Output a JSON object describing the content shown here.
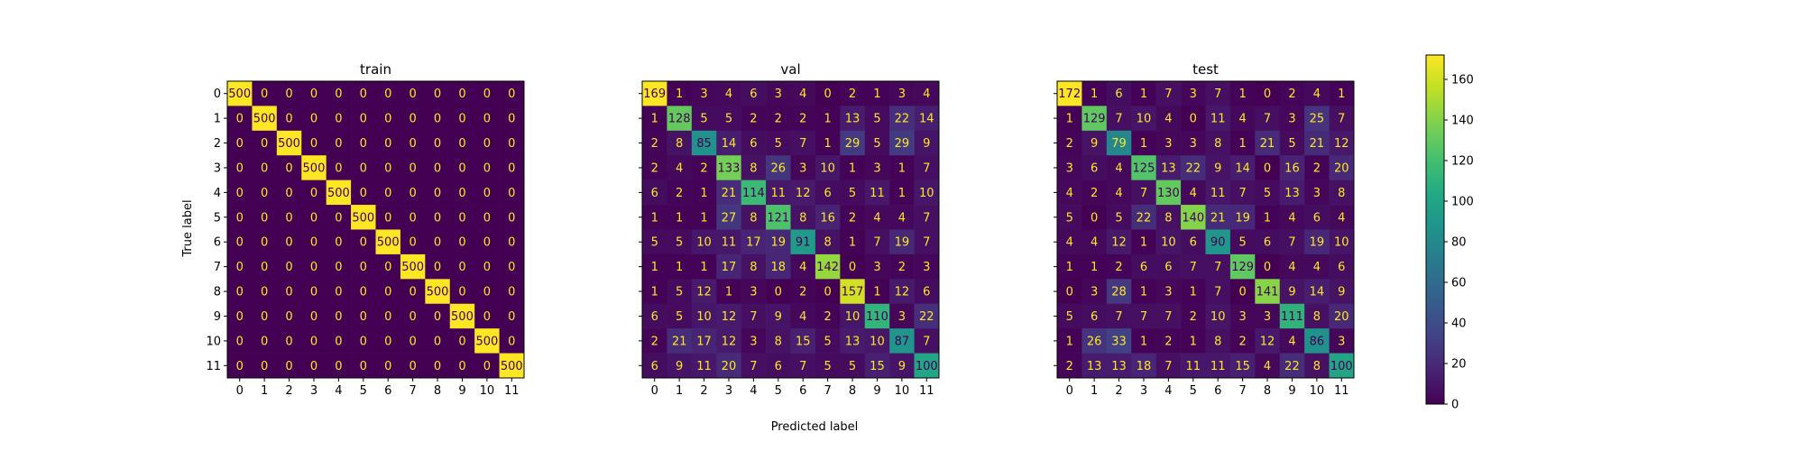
{
  "chart_data": {
    "type": "heatmap",
    "xlabel": "Predicted label",
    "ylabel": "True label",
    "labels": [
      "0",
      "1",
      "2",
      "3",
      "4",
      "5",
      "6",
      "7",
      "8",
      "9",
      "10",
      "11"
    ],
    "colormap": "viridis",
    "colorbar": {
      "vmin": 0,
      "vmax": 172,
      "ticks": [
        0,
        20,
        40,
        60,
        80,
        100,
        120,
        140,
        160
      ]
    },
    "text_colors": {
      "on_dark": "#fde725",
      "on_light": "#440154"
    },
    "panels": [
      {
        "title": "train",
        "matrix": [
          [
            500,
            0,
            0,
            0,
            0,
            0,
            0,
            0,
            0,
            0,
            0,
            0
          ],
          [
            0,
            500,
            0,
            0,
            0,
            0,
            0,
            0,
            0,
            0,
            0,
            0
          ],
          [
            0,
            0,
            500,
            0,
            0,
            0,
            0,
            0,
            0,
            0,
            0,
            0
          ],
          [
            0,
            0,
            0,
            500,
            0,
            0,
            0,
            0,
            0,
            0,
            0,
            0
          ],
          [
            0,
            0,
            0,
            0,
            500,
            0,
            0,
            0,
            0,
            0,
            0,
            0
          ],
          [
            0,
            0,
            0,
            0,
            0,
            500,
            0,
            0,
            0,
            0,
            0,
            0
          ],
          [
            0,
            0,
            0,
            0,
            0,
            0,
            500,
            0,
            0,
            0,
            0,
            0
          ],
          [
            0,
            0,
            0,
            0,
            0,
            0,
            0,
            500,
            0,
            0,
            0,
            0
          ],
          [
            0,
            0,
            0,
            0,
            0,
            0,
            0,
            0,
            500,
            0,
            0,
            0
          ],
          [
            0,
            0,
            0,
            0,
            0,
            0,
            0,
            0,
            0,
            500,
            0,
            0
          ],
          [
            0,
            0,
            0,
            0,
            0,
            0,
            0,
            0,
            0,
            0,
            500,
            0
          ],
          [
            0,
            0,
            0,
            0,
            0,
            0,
            0,
            0,
            0,
            0,
            0,
            500
          ]
        ]
      },
      {
        "title": "val",
        "matrix": [
          [
            169,
            1,
            3,
            4,
            6,
            3,
            4,
            0,
            2,
            1,
            3,
            4
          ],
          [
            1,
            128,
            5,
            5,
            2,
            2,
            2,
            1,
            13,
            5,
            22,
            14
          ],
          [
            2,
            8,
            85,
            14,
            6,
            5,
            7,
            1,
            29,
            5,
            29,
            9
          ],
          [
            2,
            4,
            2,
            133,
            8,
            26,
            3,
            10,
            1,
            3,
            1,
            7
          ],
          [
            6,
            2,
            1,
            21,
            114,
            11,
            12,
            6,
            5,
            11,
            1,
            10
          ],
          [
            1,
            1,
            1,
            27,
            8,
            121,
            8,
            16,
            2,
            4,
            4,
            7
          ],
          [
            5,
            5,
            10,
            11,
            17,
            19,
            91,
            8,
            1,
            7,
            19,
            7
          ],
          [
            1,
            1,
            1,
            17,
            8,
            18,
            4,
            142,
            0,
            3,
            2,
            3
          ],
          [
            1,
            5,
            12,
            1,
            3,
            0,
            2,
            0,
            157,
            1,
            12,
            6
          ],
          [
            6,
            5,
            10,
            12,
            7,
            9,
            4,
            2,
            10,
            110,
            3,
            22
          ],
          [
            2,
            21,
            17,
            12,
            3,
            8,
            15,
            5,
            13,
            10,
            87,
            7
          ],
          [
            6,
            9,
            11,
            20,
            7,
            6,
            7,
            5,
            5,
            15,
            9,
            100
          ]
        ]
      },
      {
        "title": "test",
        "matrix": [
          [
            172,
            1,
            6,
            1,
            7,
            3,
            7,
            1,
            0,
            2,
            4,
            1
          ],
          [
            1,
            129,
            7,
            10,
            4,
            0,
            11,
            4,
            7,
            3,
            25,
            7
          ],
          [
            2,
            9,
            79,
            1,
            3,
            3,
            8,
            1,
            21,
            5,
            21,
            12
          ],
          [
            3,
            6,
            4,
            125,
            13,
            22,
            9,
            14,
            0,
            16,
            2,
            20
          ],
          [
            4,
            2,
            4,
            7,
            130,
            4,
            11,
            7,
            5,
            13,
            3,
            8
          ],
          [
            5,
            0,
            5,
            22,
            8,
            140,
            21,
            19,
            1,
            4,
            6,
            4
          ],
          [
            4,
            4,
            12,
            1,
            10,
            6,
            90,
            5,
            6,
            7,
            19,
            10
          ],
          [
            1,
            1,
            2,
            6,
            6,
            7,
            7,
            129,
            0,
            4,
            4,
            6
          ],
          [
            0,
            3,
            28,
            1,
            3,
            1,
            7,
            0,
            141,
            9,
            14,
            9
          ],
          [
            5,
            6,
            7,
            7,
            7,
            2,
            10,
            3,
            3,
            111,
            8,
            20
          ],
          [
            1,
            26,
            33,
            1,
            2,
            1,
            8,
            2,
            12,
            4,
            86,
            3
          ],
          [
            2,
            13,
            13,
            18,
            7,
            11,
            11,
            15,
            4,
            22,
            8,
            100
          ]
        ]
      }
    ]
  }
}
